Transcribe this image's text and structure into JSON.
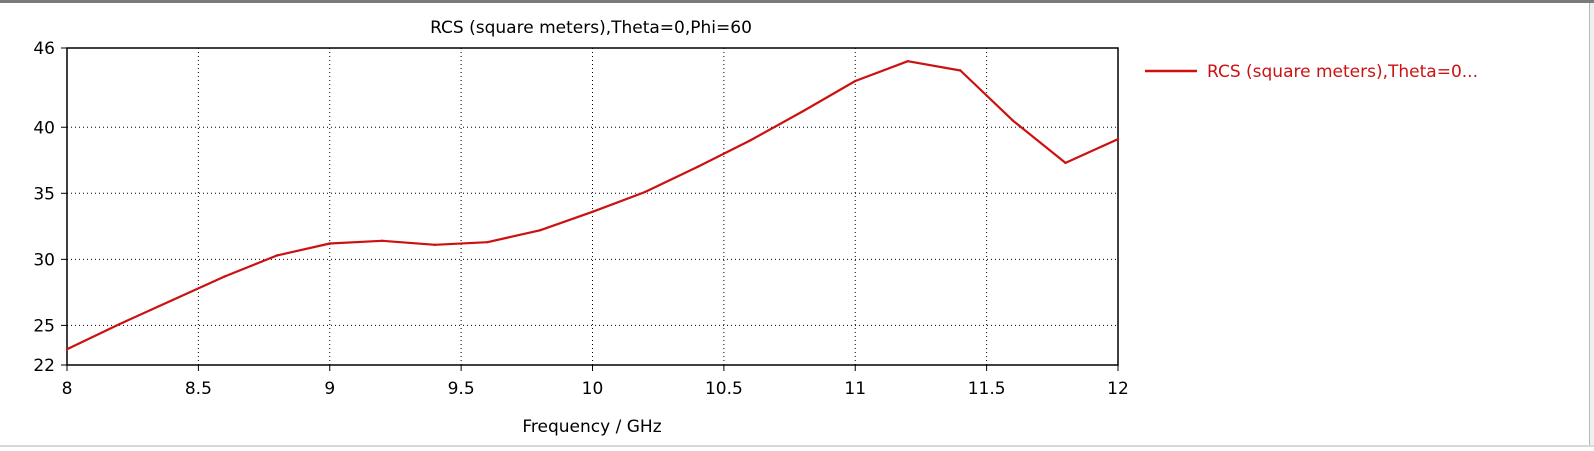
{
  "chart_data": {
    "type": "line",
    "title": "RCS (square meters),Theta=0,Phi=60",
    "xlabel": "Frequency / GHz",
    "ylabel": "",
    "xlim": [
      8,
      12
    ],
    "ylim": [
      22,
      46
    ],
    "xticks": [
      "8",
      "8.5",
      "9",
      "9.5",
      "10",
      "10.5",
      "11",
      "11.5",
      "12"
    ],
    "yticks": [
      "22",
      "25",
      "30",
      "35",
      "40",
      "46"
    ],
    "grid": true,
    "legend_position": "right",
    "colors": {
      "series": "#cc1111",
      "legend_text": "#cc1111",
      "axis": "#000000",
      "grid": "#000000"
    },
    "series": [
      {
        "name": "RCS (square meters),Theta=0...",
        "x": [
          8.0,
          8.2,
          8.4,
          8.6,
          8.8,
          9.0,
          9.2,
          9.4,
          9.6,
          9.8,
          10.0,
          10.2,
          10.4,
          10.6,
          10.8,
          11.0,
          11.2,
          11.4,
          11.6,
          11.8,
          12.0
        ],
        "y": [
          23.2,
          25.1,
          26.9,
          28.7,
          30.3,
          31.2,
          31.4,
          31.1,
          31.3,
          32.2,
          33.6,
          35.1,
          37.0,
          39.0,
          41.2,
          43.5,
          45.0,
          44.3,
          40.5,
          37.3,
          39.1
        ]
      }
    ]
  }
}
